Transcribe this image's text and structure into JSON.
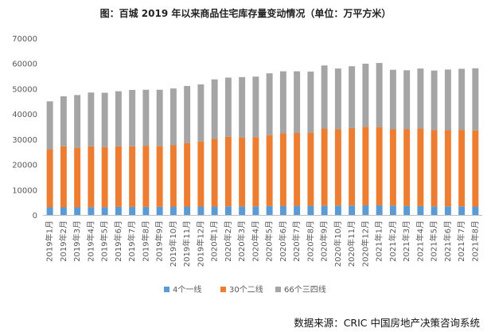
{
  "source": "数据来源：CRIC 中国房地产决策咨询系统",
  "colors": {
    "tier1": "#5b9bd5",
    "tier2": "#ed7d31",
    "tier3": "#a5a5a5",
    "axis": "#bfbfbf",
    "text": "#595959"
  },
  "chart_data": {
    "type": "bar",
    "stacked": true,
    "title": "图：百城 2019 年以来商品住宅库存量变动情况（单位：万平方米）",
    "categories": [
      "2019年1月",
      "2019年2月",
      "2019年3月",
      "2019年4月",
      "2019年5月",
      "2019年6月",
      "2019年7月",
      "2019年8月",
      "2019年9月",
      "2019年10月",
      "2019年11月",
      "2019年12月",
      "2020年1月",
      "2020年2月",
      "2020年3月",
      "2020年4月",
      "2020年5月",
      "2020年6月",
      "2020年7月",
      "2020年8月",
      "2020年9月",
      "2020年10月",
      "2020年11月",
      "2020年12月",
      "2021年1月",
      "2021年2月",
      "2021年3月",
      "2021年4月",
      "2021年5月",
      "2021年6月",
      "2021年7月",
      "2021年8月"
    ],
    "series": [
      {
        "name": "4个一线",
        "values": [
          3000,
          3000,
          3000,
          3100,
          3100,
          3200,
          3200,
          3200,
          3200,
          3300,
          3300,
          3300,
          3300,
          3400,
          3400,
          3400,
          3500,
          3600,
          3600,
          3600,
          3700,
          3700,
          3700,
          3800,
          3800,
          3700,
          3600,
          3500,
          3400,
          3400,
          3400,
          3300
        ]
      },
      {
        "name": "30个二线",
        "values": [
          23000,
          24200,
          23600,
          24100,
          23800,
          24000,
          24000,
          24200,
          24100,
          24300,
          25200,
          25800,
          26800,
          27600,
          27200,
          27400,
          28100,
          28700,
          28900,
          29000,
          30500,
          30200,
          30700,
          31100,
          31000,
          30200,
          30300,
          30700,
          30200,
          30200,
          30300,
          30200
        ]
      },
      {
        "name": "66个三四线",
        "values": [
          19000,
          19800,
          20900,
          21300,
          21500,
          21800,
          22300,
          22200,
          22300,
          22500,
          22600,
          22600,
          23600,
          23400,
          24000,
          24000,
          24500,
          24600,
          24400,
          24200,
          25000,
          24100,
          24500,
          25000,
          25400,
          23600,
          23400,
          23800,
          23600,
          24000,
          24200,
          24600
        ]
      }
    ],
    "ylim": [
      0,
      70000
    ],
    "yticks": [
      0,
      10000,
      20000,
      30000,
      40000,
      50000,
      60000,
      70000
    ],
    "grid": false,
    "legend": "bottom"
  }
}
